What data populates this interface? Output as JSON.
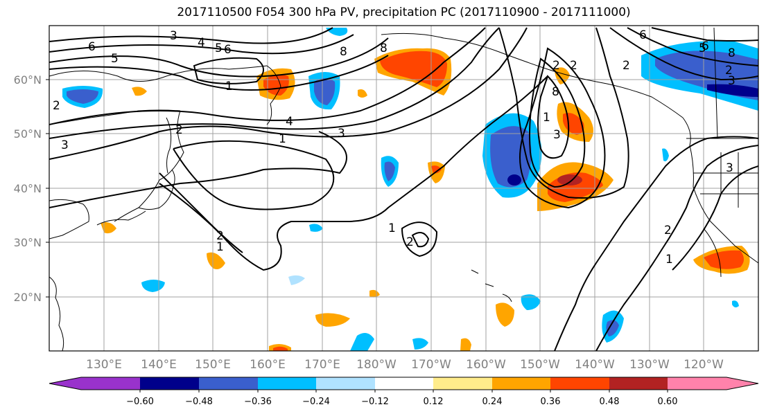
{
  "title": "2017110500 F054 300 hPa PV, precipitation PC (2017110900 - 2017111000)",
  "map": {
    "lat_labels": [
      "60°N",
      "50°N",
      "40°N",
      "30°N",
      "20°N"
    ],
    "lon_labels": [
      "130°E",
      "140°E",
      "150°E",
      "160°E",
      "170°E",
      "180°W",
      "170°W",
      "160°W",
      "150°W",
      "140°W",
      "130°W",
      "120°W"
    ]
  },
  "pv_contour_labels": [
    "6",
    "5",
    "4",
    "3",
    "2",
    "1",
    "3",
    "4",
    "3",
    "1",
    "8",
    "5",
    "2",
    "6",
    "8",
    "2",
    "1",
    "2",
    "1",
    "2",
    "1",
    "2",
    "3",
    "8",
    "2",
    "3",
    "2",
    "1",
    "5",
    "6",
    "2",
    "6",
    "8",
    "3"
  ],
  "colorbar": {
    "colors": [
      "#9932cc",
      "#00008b",
      "#3a5fcd",
      "#00bfff",
      "#b0e2ff",
      "#ffffff",
      "#ffec8b",
      "#ffa500",
      "#ff4500",
      "#b22222",
      "#ff82ab"
    ],
    "tick_labels": [
      "−0.60",
      "−0.48",
      "−0.36",
      "−0.24",
      "−0.12",
      "0.12",
      "0.24",
      "0.36",
      "0.48",
      "0.60"
    ]
  }
}
